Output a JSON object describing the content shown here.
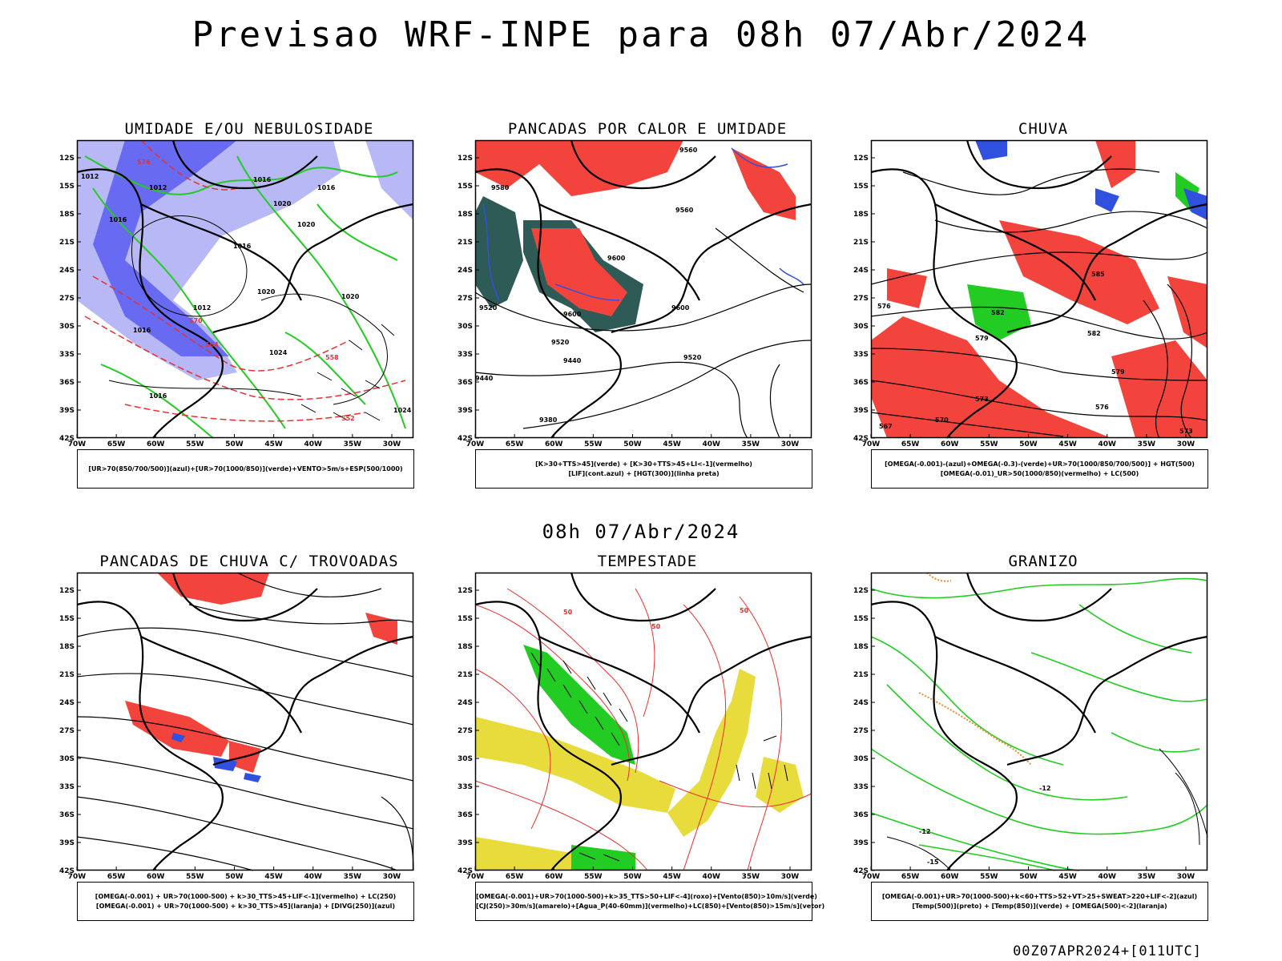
{
  "header": {
    "title": "Previsao WRF-INPE  para 08h 07/Abr/2024"
  },
  "mid_title": "08h 07/Abr/2024",
  "footer": "00Z07APR2024+[011UTC]",
  "axes": {
    "lat_labels": [
      "12S",
      "15S",
      "18S",
      "21S",
      "24S",
      "27S",
      "30S",
      "33S",
      "36S",
      "39S",
      "42S"
    ],
    "lon_labels": [
      "70W",
      "65W",
      "60W",
      "55W",
      "50W",
      "45W",
      "40W",
      "35W",
      "30W"
    ]
  },
  "panels": [
    {
      "id": "p1",
      "title": "UMIDADE E/OU NEBULOSIDADE",
      "legend": [
        "[UR>70(850/700/500)](azul)+[UR>70(1000/850)](verde)+VENTO>5m/s+ESP(500/1000)"
      ],
      "labels": [
        "1012",
        "1012",
        "1016",
        "1016",
        "1020",
        "1016",
        "1020",
        "1016",
        "1012",
        "1016",
        "1020",
        "1024",
        "1016",
        "1020",
        "576",
        "570",
        "564",
        "558",
        "552",
        "1024"
      ]
    },
    {
      "id": "p2",
      "title": "PANCADAS POR CALOR E UMIDADE",
      "legend": [
        "[K>30+TTS>45](verde)  +  [K>30+TTS>45+LI<-1](vermelho)",
        "[LIF](cont.azul)  +  [HGT(300)](linha preta)"
      ],
      "labels": [
        "9560",
        "9580",
        "9560",
        "9600",
        "9520",
        "9600",
        "9600",
        "9520",
        "9440",
        "9440",
        "9520",
        "9380"
      ]
    },
    {
      "id": "p3",
      "title": "CHUVA",
      "legend": [
        "[OMEGA(-0.001)-(azul)+OMEGA(-0.3)-(verde)+UR>70(1000/850/700/500)]  +  HGT(500)",
        "[OMEGA(-0.01)_UR>50(1000/850)(vermelho)  +  LC(500)"
      ],
      "labels": [
        "585",
        "582",
        "579",
        "582",
        "579",
        "576",
        "573",
        "570",
        "567",
        "576",
        "573"
      ]
    },
    {
      "id": "p4",
      "title": "PANCADAS DE CHUVA C/ TROVOADAS",
      "legend": [
        "[OMEGA(-0.001)  +  UR>70(1000-500)  +  k>30_TTS>45+LIF<-1](vermelho)  +  LC(250)",
        "[OMEGA(-0.001)  +  UR>70(1000-500)  +  k>30_TTS>45](laranja)  +  [DIVG(250)](azul)"
      ],
      "labels": []
    },
    {
      "id": "p5",
      "title": "TEMPESTADE",
      "legend": [
        "[OMEGA(-0.001)+UR>70(1000-500)+k>35_TTS>50+LIF<-4](roxo)+[Vento(850)>10m/s](verde)",
        "[CJ(250)>30m/s](amarelo)+[Agua_P(40-60mm)](vermelho)+LC(850)+[Vento(850)>15m/s](vetor)"
      ],
      "labels": [
        "50",
        "50",
        "50"
      ]
    },
    {
      "id": "p6",
      "title": "GRANIZO",
      "legend": [
        "[OMEGA(-0.001)+UR>70(1000-500)+k<60+TTS>52+VT>25+SWEAT>220+LIF<-2](azul)",
        "[Temp(500)](preto)  +  [Temp(850)](verde)  +  [OMEGA(500)<-2](laranja)"
      ],
      "labels": [
        "-12",
        "-15",
        "-12"
      ]
    }
  ],
  "colors": {
    "blue_fill": "#5a5cf0",
    "lavender": "#b7b8f5",
    "green": "#22cc22",
    "red_fill": "#f2443c",
    "dark_teal": "#2e5b55",
    "yellow": "#e8dc3c",
    "orange": "#f08a30",
    "contour_red": "#e83030",
    "black": "#000000"
  }
}
